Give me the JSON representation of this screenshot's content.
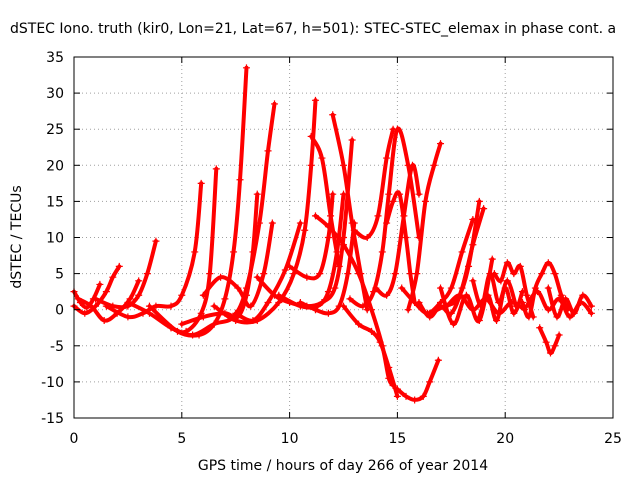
{
  "chart_data": {
    "type": "scatter",
    "title": "dSTEC Iono. truth (kir0, Lon=21, Lat=67, h=501): STEC-STEC_elemax in phase cont. a",
    "xlabel": "GPS time / hours of day 266 of year 2014",
    "ylabel": "dSTEC  / TECUs",
    "xlim": [
      0,
      25
    ],
    "ylim": [
      -15,
      35
    ],
    "xticks": [
      0,
      5,
      10,
      15,
      20,
      25
    ],
    "yticks": [
      -15,
      -10,
      -5,
      0,
      5,
      10,
      15,
      20,
      25,
      30,
      35
    ],
    "grid": true,
    "marker": "plus",
    "color": "#ff0000",
    "series": [
      {
        "x": [
          0.0,
          0.3,
          0.6,
          0.9,
          1.2
        ],
        "y": [
          2.5,
          1.0,
          0.3,
          1.5,
          3.5
        ]
      },
      {
        "x": [
          0.0,
          0.5,
          1.0,
          1.5,
          1.8,
          2.1
        ],
        "y": [
          0.5,
          -0.5,
          0.5,
          2.5,
          4.5,
          6.0
        ]
      },
      {
        "x": [
          0.2,
          0.8,
          1.4,
          2.0,
          2.6,
          3.0
        ],
        "y": [
          1.5,
          0.5,
          -1.5,
          -0.5,
          1.5,
          4.0
        ]
      },
      {
        "x": [
          1.0,
          1.8,
          2.5,
          3.0,
          3.4,
          3.8
        ],
        "y": [
          1.5,
          0.5,
          0.5,
          2.0,
          5.0,
          9.5
        ]
      },
      {
        "x": [
          1.5,
          2.5,
          3.2,
          3.8,
          4.5,
          5.0,
          5.6,
          5.9
        ],
        "y": [
          0.5,
          -1.0,
          -0.5,
          0.5,
          0.5,
          2.0,
          8.0,
          17.5
        ]
      },
      {
        "x": [
          2.5,
          3.5,
          4.5,
          5.2,
          5.9,
          6.3,
          6.6
        ],
        "y": [
          1.0,
          -0.5,
          -2.5,
          -3.0,
          -0.5,
          5.0,
          19.5
        ]
      },
      {
        "x": [
          3.5,
          4.8,
          5.8,
          6.5,
          7.0,
          7.4,
          7.7,
          8.0
        ],
        "y": [
          0.5,
          -3.0,
          -3.5,
          -2.0,
          1.5,
          8.0,
          18.0,
          33.5
        ]
      },
      {
        "x": [
          4.5,
          5.5,
          6.5,
          7.4,
          8.0,
          8.6,
          9.0,
          9.3
        ],
        "y": [
          -2.5,
          -3.5,
          -2.0,
          -1.0,
          3.0,
          12.0,
          22.0,
          28.5
        ]
      },
      {
        "x": [
          5.0,
          6.0,
          7.0,
          7.6,
          8.0,
          8.3,
          8.5
        ],
        "y": [
          -2.0,
          -1.0,
          -0.5,
          -1.0,
          2.0,
          8.0,
          16.0
        ]
      },
      {
        "x": [
          6.0,
          6.8,
          7.6,
          8.2,
          8.8,
          9.2
        ],
        "y": [
          2.0,
          4.5,
          3.0,
          0.5,
          5.0,
          12.0
        ]
      },
      {
        "x": [
          6.5,
          7.5,
          8.5,
          9.5,
          10.2,
          10.7,
          11.0,
          11.2
        ],
        "y": [
          0.5,
          -1.5,
          -1.5,
          1.0,
          5.0,
          11.0,
          20.0,
          29.0
        ]
      },
      {
        "x": [
          7.5,
          8.3,
          9.0,
          9.8,
          10.5
        ],
        "y": [
          -0.5,
          -1.5,
          1.0,
          5.5,
          12.0
        ]
      },
      {
        "x": [
          8.5,
          9.3,
          10.0,
          10.8,
          11.5,
          12.1,
          12.5,
          12.9
        ],
        "y": [
          4.5,
          2.0,
          1.0,
          0.5,
          1.0,
          3.0,
          10.0,
          23.5
        ]
      },
      {
        "x": [
          9.5,
          10.5,
          11.3,
          11.8,
          12.2,
          12.5
        ],
        "y": [
          2.0,
          0.5,
          0.5,
          2.5,
          8.0,
          16.0
        ]
      },
      {
        "x": [
          10.5,
          11.2,
          11.8,
          12.3,
          12.7,
          13.0
        ],
        "y": [
          1.0,
          0.0,
          -0.5,
          0.5,
          5.0,
          12.0
        ]
      },
      {
        "x": [
          10.0,
          10.8,
          11.4,
          11.8,
          12.0
        ],
        "y": [
          6.0,
          4.5,
          5.0,
          10.0,
          16.0
        ]
      },
      {
        "x": [
          11.0,
          11.5,
          11.9,
          12.3
        ],
        "y": [
          24.0,
          21.0,
          13.0,
          6.0
        ]
      },
      {
        "x": [
          12.0,
          12.5,
          12.9,
          13.3,
          13.6
        ],
        "y": [
          27.0,
          20.0,
          12.0,
          5.0,
          0.0
        ]
      },
      {
        "x": [
          11.2,
          11.8,
          12.5,
          13.2,
          13.8,
          14.3,
          14.6,
          14.8
        ],
        "y": [
          13.0,
          11.5,
          9.0,
          5.0,
          0.0,
          -5.0,
          -9.5,
          -10.5
        ]
      },
      {
        "x": [
          12.5,
          13.2,
          13.8,
          14.2,
          14.6,
          15.0
        ],
        "y": [
          0.5,
          -2.0,
          -3.0,
          -4.5,
          -8.0,
          -12.0
        ]
      },
      {
        "x": [
          12.8,
          13.4,
          13.9,
          14.3,
          14.6,
          15.0,
          15.5,
          16.0
        ],
        "y": [
          1.5,
          0.5,
          2.5,
          8.0,
          16.0,
          25.0,
          20.0,
          10.0
        ]
      },
      {
        "x": [
          13.0,
          13.6,
          14.1,
          14.5,
          14.8
        ],
        "y": [
          11.0,
          10.0,
          13.0,
          21.0,
          25.0
        ]
      },
      {
        "x": [
          14.0,
          14.5,
          14.9,
          15.3,
          15.7,
          16.0
        ],
        "y": [
          3.0,
          2.0,
          5.0,
          13.0,
          20.0,
          16.0
        ]
      },
      {
        "x": [
          14.5,
          14.8,
          15.1,
          15.4,
          15.6,
          15.8
        ],
        "y": [
          12.0,
          15.0,
          16.0,
          10.0,
          5.0,
          1.0
        ]
      },
      {
        "x": [
          15.0,
          15.4,
          15.8,
          16.2,
          16.5,
          16.9
        ],
        "y": [
          -11.0,
          -12.0,
          -12.5,
          -12.0,
          -10.0,
          -7.0
        ]
      },
      {
        "x": [
          15.5,
          15.9,
          16.3,
          16.7,
          17.0
        ],
        "y": [
          0.0,
          5.0,
          15.0,
          20.0,
          23.0
        ]
      },
      {
        "x": [
          15.2,
          15.8,
          16.4,
          17.0,
          17.5,
          18.0,
          18.5
        ],
        "y": [
          3.0,
          1.0,
          -0.5,
          1.0,
          3.0,
          8.0,
          12.5
        ]
      },
      {
        "x": [
          16.0,
          16.5,
          17.0,
          17.5,
          18.0,
          18.5,
          19.0
        ],
        "y": [
          1.0,
          -1.0,
          0.5,
          -0.5,
          3.0,
          9.0,
          14.0
        ]
      },
      {
        "x": [
          16.5,
          17.2,
          17.8,
          18.3,
          18.8
        ],
        "y": [
          -0.5,
          0.5,
          1.5,
          6.0,
          15.0
        ]
      },
      {
        "x": [
          17.0,
          17.6,
          18.2,
          18.8,
          19.4
        ],
        "y": [
          3.0,
          -2.0,
          2.0,
          -1.5,
          7.0
        ]
      },
      {
        "x": [
          18.5,
          18.9,
          19.3,
          19.7,
          20.1,
          20.5
        ],
        "y": [
          4.0,
          0.5,
          5.0,
          1.0,
          4.0,
          0.5
        ]
      },
      {
        "x": [
          18.8,
          19.2,
          19.6,
          20.0,
          20.4,
          20.8
        ],
        "y": [
          -1.0,
          2.0,
          -1.5,
          3.0,
          -0.5,
          2.5
        ]
      },
      {
        "x": [
          19.5,
          19.8,
          20.1,
          20.4,
          20.7,
          21.0,
          21.3
        ],
        "y": [
          5.0,
          4.0,
          6.5,
          5.0,
          6.0,
          2.0,
          -1.0
        ]
      },
      {
        "x": [
          20.8,
          21.1,
          21.4,
          21.7,
          22.0,
          22.3,
          22.6,
          22.9
        ],
        "y": [
          1.0,
          -1.0,
          3.0,
          5.0,
          6.5,
          5.0,
          2.0,
          0.0
        ]
      },
      {
        "x": [
          21.6,
          21.9,
          22.1,
          22.3,
          22.5
        ],
        "y": [
          -2.5,
          -4.5,
          -6.0,
          -5.0,
          -3.5
        ]
      },
      {
        "x": [
          22.0,
          22.4,
          22.8,
          23.2,
          23.6,
          24.0
        ],
        "y": [
          3.0,
          -1.0,
          1.5,
          -0.5,
          2.0,
          0.5
        ]
      },
      {
        "x": [
          21.0,
          21.5,
          22.0,
          22.5,
          23.0,
          23.5,
          24.0
        ],
        "y": [
          0.5,
          2.5,
          0.0,
          1.5,
          -1.0,
          1.0,
          -0.5
        ]
      },
      {
        "x": [
          17.3,
          17.9,
          18.5,
          19.1,
          19.7,
          20.3,
          20.9
        ],
        "y": [
          0.5,
          2.0,
          0.0,
          1.5,
          -0.5,
          1.0,
          0.0
        ]
      }
    ]
  }
}
